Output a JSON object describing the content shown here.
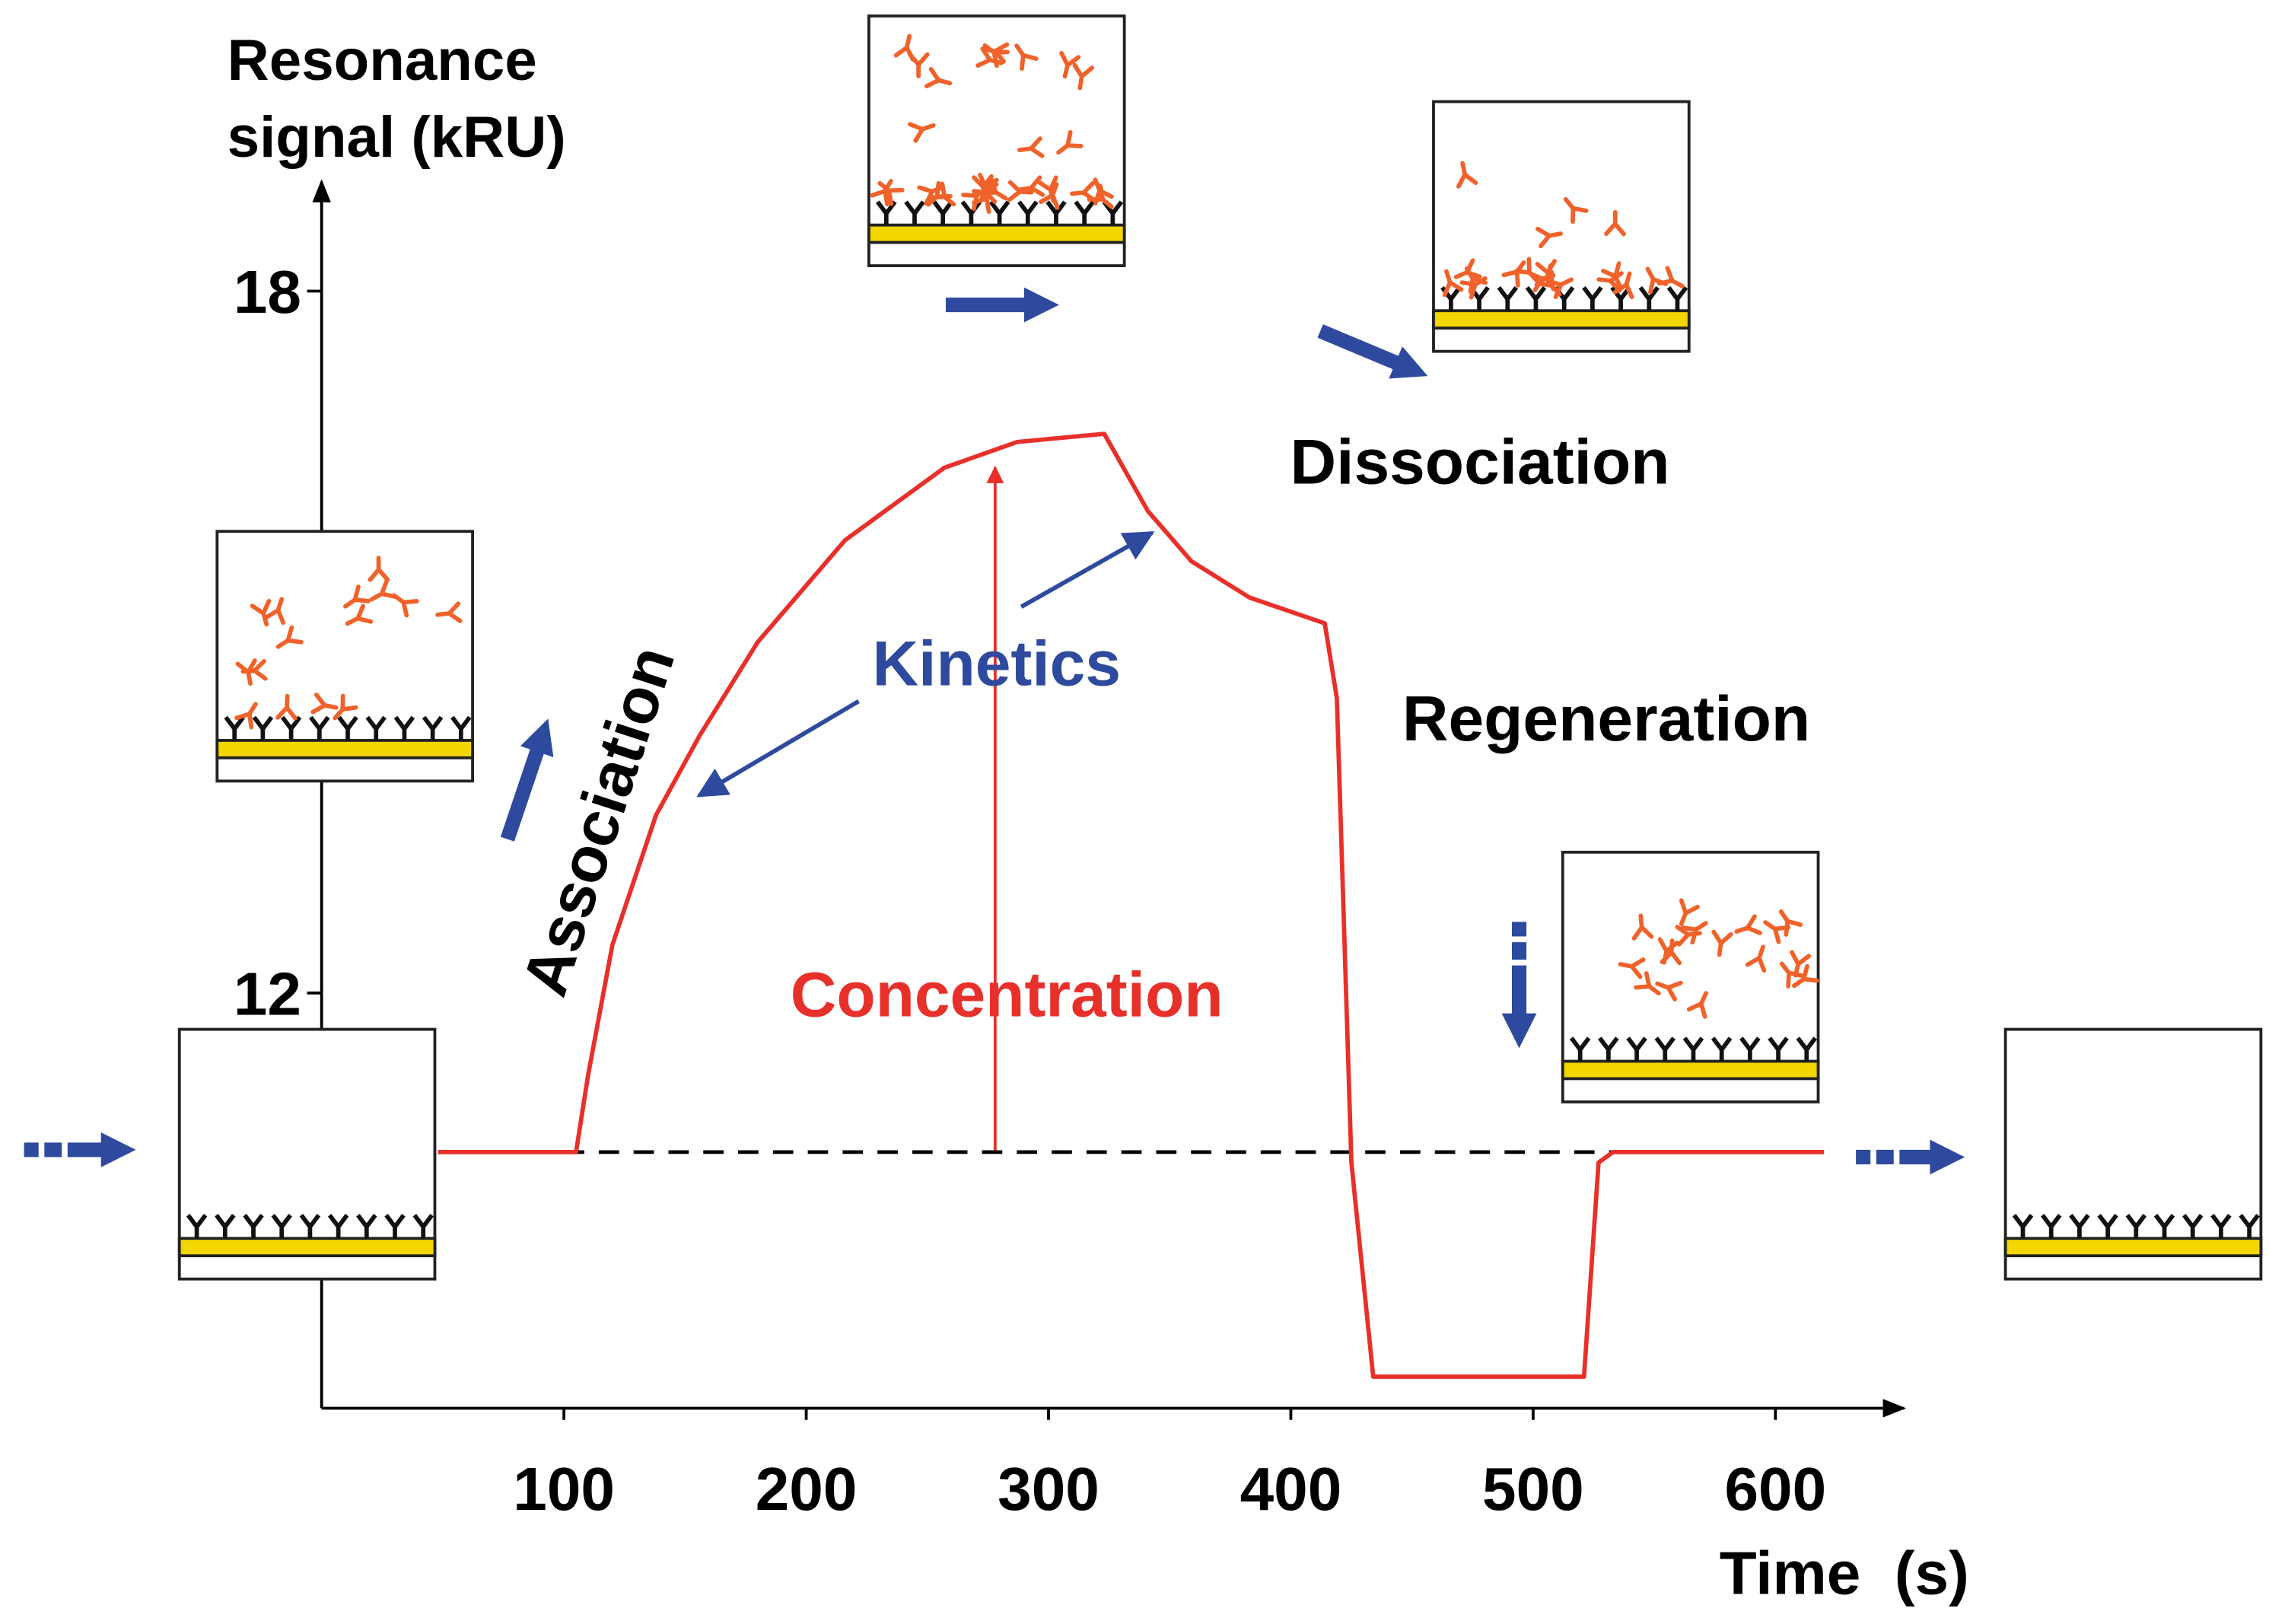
{
  "chart_data": {
    "type": "line",
    "ylabel": [
      "Resonance",
      "signal (kRU)"
    ],
    "xlabel": "Time  (s)",
    "x": [
      48,
      105,
      110,
      120,
      138,
      156,
      180,
      216,
      257,
      287,
      323,
      341,
      359,
      383,
      414,
      419,
      425,
      434,
      521,
      527,
      533,
      620
    ],
    "values": [
      10.64,
      10.64,
      11.3,
      12.41,
      13.52,
      14.2,
      15.0,
      15.87,
      16.49,
      16.71,
      16.78,
      16.12,
      15.69,
      15.38,
      15.16,
      14.52,
      10.55,
      8.72,
      8.72,
      10.55,
      10.64,
      10.64
    ],
    "color": "#e8302a",
    "reference_line": {
      "y": 10.64,
      "x": [
        100,
        533
      ]
    },
    "xlim": [
      0,
      650
    ],
    "xticks": [
      100,
      200,
      300,
      400,
      500,
      600
    ],
    "ylim": [
      8.45,
      18.9
    ],
    "yticks": [
      12,
      18
    ],
    "annotations": [
      "Association",
      "Kinetics",
      "Concentration",
      "Dissociation",
      "Regeneration"
    ]
  }
}
